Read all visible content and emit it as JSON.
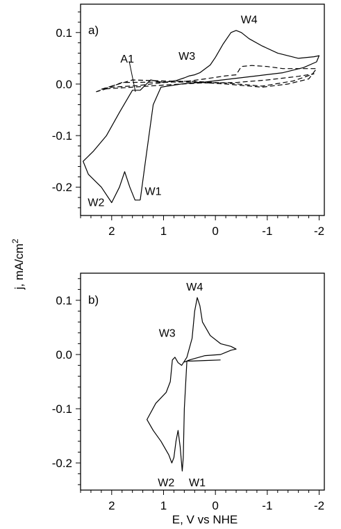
{
  "figure": {
    "ylabel": "j, mA/cm²",
    "xlabel": "E, V vs NHE"
  },
  "chart_data": [
    {
      "type": "line",
      "panel": "a)",
      "xlim": [
        2.6,
        -2.1
      ],
      "ylim": [
        -0.255,
        0.155
      ],
      "x_ticks": [
        2,
        1,
        0,
        -1,
        -2
      ],
      "x_tick_labels": [
        "2",
        "1",
        "0",
        "-1",
        "-2"
      ],
      "y_ticks": [
        0.1,
        0.0,
        -0.1,
        -0.2
      ],
      "y_tick_labels": [
        "0.1",
        "0.0",
        "-0.1",
        "-0.2"
      ],
      "grid": false,
      "series": [
        {
          "style": "solid",
          "points": [
            [
              1.45,
              -0.225
            ],
            [
              1.35,
              -0.15
            ],
            [
              1.2,
              -0.04
            ],
            [
              1.05,
              -0.006
            ],
            [
              0.6,
              0.001
            ],
            [
              0.2,
              0.004
            ],
            [
              -0.3,
              0.01
            ],
            [
              -0.8,
              0.016
            ],
            [
              -1.3,
              0.022
            ],
            [
              -1.7,
              0.032
            ],
            [
              -1.95,
              0.043
            ],
            [
              -2.0,
              0.055
            ],
            [
              -1.9,
              0.053
            ],
            [
              -1.6,
              0.05
            ],
            [
              -1.2,
              0.06
            ],
            [
              -0.9,
              0.074
            ],
            [
              -0.65,
              0.088
            ],
            [
              -0.5,
              0.1
            ],
            [
              -0.4,
              0.104
            ],
            [
              -0.3,
              0.1
            ],
            [
              -0.15,
              0.078
            ],
            [
              0.0,
              0.052
            ],
            [
              0.1,
              0.037
            ],
            [
              0.3,
              0.022
            ],
            [
              0.4,
              0.018
            ],
            [
              0.5,
              0.016
            ],
            [
              0.6,
              0.012
            ],
            [
              0.75,
              0.007
            ],
            [
              1.0,
              0.003
            ],
            [
              1.25,
              0.008
            ],
            [
              1.45,
              -0.012
            ],
            [
              1.6,
              -0.012
            ],
            [
              1.85,
              -0.055
            ],
            [
              2.1,
              -0.1
            ],
            [
              2.35,
              -0.13
            ],
            [
              2.55,
              -0.15
            ],
            [
              2.45,
              -0.175
            ],
            [
              2.2,
              -0.2
            ],
            [
              2.0,
              -0.23
            ],
            [
              1.85,
              -0.2
            ],
            [
              1.75,
              -0.17
            ],
            [
              1.65,
              -0.2
            ],
            [
              1.55,
              -0.225
            ],
            [
              1.45,
              -0.225
            ]
          ]
        },
        {
          "style": "dashed",
          "points": [
            [
              2.3,
              -0.015
            ],
            [
              1.8,
              0.003
            ],
            [
              1.0,
              0.004
            ],
            [
              0.4,
              0.004
            ],
            [
              -0.2,
              0.0
            ],
            [
              -0.9,
              -0.006
            ],
            [
              -1.4,
              0.0
            ],
            [
              -1.8,
              0.01
            ],
            [
              -1.95,
              0.03
            ],
            [
              -1.7,
              0.03
            ],
            [
              -1.3,
              0.03
            ],
            [
              -1.0,
              0.034
            ],
            [
              -0.7,
              0.036
            ],
            [
              -0.5,
              0.034
            ],
            [
              -0.4,
              0.018
            ],
            [
              -0.2,
              0.016
            ],
            [
              0.2,
              0.01
            ],
            [
              0.5,
              0.006
            ],
            [
              1.0,
              0.003
            ],
            [
              1.5,
              -0.003
            ],
            [
              2.0,
              -0.006
            ],
            [
              2.3,
              -0.015
            ]
          ]
        },
        {
          "style": "dashed",
          "points": [
            [
              2.2,
              -0.01
            ],
            [
              1.6,
              0.008
            ],
            [
              1.0,
              0.006
            ],
            [
              0.4,
              0.005
            ],
            [
              -0.2,
              0.002
            ],
            [
              -0.9,
              -0.004
            ],
            [
              -1.5,
              0.006
            ],
            [
              -1.9,
              0.02
            ],
            [
              -1.6,
              0.015
            ],
            [
              -1.0,
              0.008
            ],
            [
              -0.4,
              0.003
            ],
            [
              0.3,
              0.002
            ],
            [
              1.0,
              -0.002
            ],
            [
              1.6,
              -0.006
            ],
            [
              2.2,
              -0.01
            ]
          ]
        }
      ],
      "annotations": [
        {
          "text": "A1",
          "x": 1.7,
          "y": 0.042
        },
        {
          "text": "W3",
          "x": 0.55,
          "y": 0.047
        },
        {
          "text": "W4",
          "x": -0.65,
          "y": 0.118
        },
        {
          "text": "W2",
          "x": 2.3,
          "y": -0.237
        },
        {
          "text": "W1",
          "x": 1.2,
          "y": -0.215
        }
      ]
    },
    {
      "type": "line",
      "panel": "b)",
      "xlim": [
        2.6,
        -2.1
      ],
      "ylim": [
        -0.25,
        0.15
      ],
      "x_ticks": [
        2,
        1,
        0,
        -1,
        -2
      ],
      "x_tick_labels": [
        "2",
        "1",
        "0",
        "-1",
        "-2"
      ],
      "y_ticks": [
        0.1,
        0.0,
        -0.1,
        -0.2
      ],
      "y_tick_labels": [
        "0.1",
        "0.0",
        "-0.1",
        "-0.2"
      ],
      "grid": false,
      "series": [
        {
          "style": "solid",
          "points": [
            [
              -0.1,
              -0.01
            ],
            [
              0.2,
              -0.011
            ],
            [
              0.45,
              -0.012
            ],
            [
              0.55,
              -0.012
            ],
            [
              0.6,
              -0.1
            ],
            [
              0.62,
              -0.19
            ],
            [
              0.64,
              -0.215
            ],
            [
              0.68,
              -0.17
            ],
            [
              0.72,
              -0.14
            ],
            [
              0.76,
              -0.16
            ],
            [
              0.8,
              -0.19
            ],
            [
              0.84,
              -0.2
            ],
            [
              0.9,
              -0.185
            ],
            [
              1.05,
              -0.16
            ],
            [
              1.2,
              -0.14
            ],
            [
              1.32,
              -0.12
            ],
            [
              1.15,
              -0.09
            ],
            [
              0.95,
              -0.07
            ],
            [
              0.87,
              -0.05
            ],
            [
              0.83,
              -0.01
            ],
            [
              0.78,
              -0.005
            ],
            [
              0.72,
              -0.015
            ],
            [
              0.65,
              -0.02
            ],
            [
              0.55,
              -0.005
            ],
            [
              0.45,
              0.03
            ],
            [
              0.4,
              0.08
            ],
            [
              0.35,
              0.105
            ],
            [
              0.3,
              0.09
            ],
            [
              0.25,
              0.06
            ],
            [
              0.1,
              0.035
            ],
            [
              -0.1,
              0.02
            ],
            [
              -0.3,
              0.015
            ],
            [
              -0.4,
              0.01
            ],
            [
              -0.3,
              0.008
            ],
            [
              -0.1,
              0.0
            ],
            [
              0.2,
              -0.002
            ],
            [
              0.5,
              -0.01
            ],
            [
              0.6,
              -0.014
            ]
          ]
        }
      ],
      "annotations": [
        {
          "text": "W4",
          "x": 0.4,
          "y": 0.118
        },
        {
          "text": "W3",
          "x": 0.93,
          "y": 0.033
        },
        {
          "text": "W2",
          "x": 0.95,
          "y": -0.243
        },
        {
          "text": "W1",
          "x": 0.35,
          "y": -0.243
        }
      ]
    }
  ]
}
